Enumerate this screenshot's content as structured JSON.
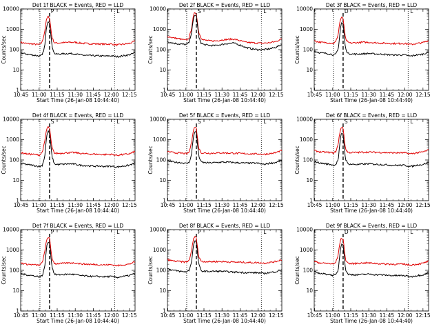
{
  "figure": {
    "panel_titles": [
      "Det 1f BLACK = Events, RED = LLD",
      "Det 2f BLACK = Events, RED = LLD",
      "Det 3f BLACK = Events, RED = LLD",
      "Det 4f BLACK = Events, RED = LLD",
      "Det 5f BLACK = Events, RED = LLD",
      "Det 6f BLACK = Events, RED = LLD",
      "Det 7f BLACK = Events, RED = LLD",
      "Det 8f BLACK = Events, RED = LLD",
      "Det 9f BLACK = Events, RED = LLD"
    ],
    "xlabel": "Start Time (26-Jan-08 10:44:40)",
    "ylabel": "Counts/sec",
    "x_ticks": [
      "10:45",
      "11:00",
      "11:15",
      "11:30",
      "11:45",
      "12:00",
      "12:15"
    ],
    "y_ticks": [
      "1",
      "10",
      "100",
      "1000",
      "10000"
    ],
    "annotation_labels": [
      "P",
      "S",
      "D",
      "S",
      "S",
      "S",
      "P",
      "P",
      "D"
    ],
    "annotation_end_label": "L",
    "colors": {
      "events": "#000000",
      "lld": "#e00000",
      "axes": "#000000",
      "background": "#ffffff"
    }
  },
  "chart_data": {
    "type": "line",
    "y_scale": "log",
    "ylim": [
      1,
      10000
    ],
    "x_range_minutes": [
      0,
      95
    ],
    "x_tick_minutes": [
      0.33,
      15.33,
      30.33,
      45.33,
      60.33,
      75.33,
      90.33
    ],
    "y_tick_values": [
      1,
      10,
      100,
      1000,
      10000
    ],
    "grid": false,
    "series_names": [
      "Events",
      "LLD"
    ],
    "panel_markers": [
      {
        "dotted": [
          16,
          78
        ],
        "dashed": [
          24
        ]
      },
      {
        "dotted": [
          16,
          78
        ],
        "dashed": [
          24
        ]
      },
      {
        "dotted": [
          16,
          78
        ],
        "dashed": [
          24
        ]
      },
      {
        "dotted": [
          16,
          78
        ],
        "dashed": [
          24
        ]
      },
      {
        "dotted": [
          16,
          78
        ],
        "dashed": [
          24
        ]
      },
      {
        "dotted": [
          16,
          78
        ],
        "dashed": [
          24
        ]
      },
      {
        "dotted": [
          16,
          78
        ],
        "dashed": [
          24
        ]
      },
      {
        "dotted": [
          16,
          78
        ],
        "dashed": [
          24
        ]
      },
      {
        "dotted": [
          16,
          78
        ],
        "dashed": [
          24
        ]
      }
    ],
    "x": [
      0,
      5,
      10,
      14,
      16,
      18,
      20,
      21,
      22,
      23,
      24,
      25,
      26,
      28,
      30,
      35,
      40,
      45,
      50,
      55,
      60,
      65,
      70,
      75,
      80,
      85,
      90,
      95
    ],
    "panels": [
      {
        "events": [
          70,
          60,
          55,
          50,
          48,
          55,
          150,
          700,
          2000,
          2600,
          2000,
          600,
          150,
          65,
          60,
          62,
          65,
          62,
          55,
          52,
          50,
          50,
          48,
          50,
          45,
          50,
          55,
          70
        ],
        "lld": [
          230,
          200,
          190,
          180,
          180,
          250,
          800,
          2200,
          3800,
          4200,
          3600,
          1200,
          400,
          220,
          210,
          220,
          230,
          230,
          210,
          200,
          195,
          190,
          185,
          190,
          170,
          185,
          200,
          260
        ]
      },
      {
        "events": [
          250,
          210,
          190,
          180,
          180,
          230,
          700,
          1800,
          4200,
          5200,
          4500,
          1500,
          400,
          210,
          180,
          160,
          160,
          180,
          200,
          210,
          170,
          130,
          110,
          100,
          100,
          110,
          130,
          180
        ],
        "lld": [
          450,
          380,
          340,
          300,
          300,
          380,
          1100,
          2800,
          5600,
          6800,
          5900,
          2000,
          700,
          380,
          300,
          270,
          270,
          300,
          320,
          330,
          280,
          230,
          220,
          210,
          210,
          220,
          250,
          340
        ]
      },
      {
        "events": [
          85,
          70,
          65,
          60,
          55,
          60,
          110,
          400,
          1500,
          2200,
          1800,
          450,
          110,
          65,
          62,
          60,
          62,
          65,
          62,
          60,
          58,
          55,
          55,
          55,
          48,
          55,
          60,
          75
        ],
        "lld": [
          270,
          230,
          220,
          210,
          200,
          250,
          600,
          1800,
          3400,
          3800,
          3200,
          1100,
          330,
          230,
          210,
          220,
          230,
          230,
          220,
          210,
          205,
          200,
          200,
          200,
          180,
          200,
          220,
          280
        ]
      },
      {
        "events": [
          70,
          60,
          55,
          50,
          48,
          55,
          150,
          700,
          2000,
          2600,
          2000,
          600,
          150,
          65,
          60,
          62,
          65,
          62,
          55,
          52,
          50,
          50,
          48,
          50,
          45,
          50,
          55,
          70
        ],
        "lld": [
          230,
          200,
          190,
          180,
          180,
          250,
          800,
          2200,
          3800,
          4200,
          3600,
          1200,
          400,
          220,
          210,
          220,
          230,
          230,
          210,
          200,
          195,
          190,
          185,
          190,
          170,
          185,
          200,
          260
        ]
      },
      {
        "events": [
          90,
          80,
          75,
          70,
          68,
          75,
          180,
          700,
          1900,
          2600,
          2100,
          600,
          160,
          80,
          75,
          72,
          75,
          78,
          78,
          75,
          72,
          70,
          70,
          70,
          60,
          70,
          75,
          100
        ],
        "lld": [
          260,
          230,
          220,
          210,
          200,
          240,
          700,
          2000,
          3600,
          4200,
          3600,
          1200,
          380,
          230,
          220,
          215,
          220,
          225,
          220,
          215,
          210,
          205,
          200,
          200,
          190,
          205,
          230,
          300
        ]
      },
      {
        "events": [
          85,
          70,
          65,
          60,
          55,
          60,
          110,
          400,
          1500,
          2200,
          1800,
          450,
          110,
          65,
          62,
          60,
          62,
          65,
          62,
          60,
          58,
          55,
          55,
          55,
          48,
          55,
          60,
          75
        ],
        "lld": [
          290,
          250,
          240,
          230,
          220,
          260,
          620,
          1800,
          3600,
          4200,
          3500,
          1100,
          340,
          240,
          230,
          235,
          240,
          245,
          240,
          235,
          230,
          225,
          225,
          225,
          200,
          225,
          245,
          310
        ]
      },
      {
        "events": [
          70,
          60,
          55,
          50,
          48,
          55,
          150,
          700,
          2000,
          2600,
          2000,
          600,
          150,
          65,
          60,
          62,
          65,
          62,
          55,
          52,
          50,
          50,
          48,
          50,
          45,
          50,
          55,
          70
        ],
        "lld": [
          230,
          200,
          190,
          180,
          180,
          250,
          800,
          2200,
          3800,
          4200,
          3600,
          1200,
          400,
          220,
          210,
          220,
          230,
          230,
          210,
          200,
          195,
          190,
          185,
          190,
          170,
          185,
          200,
          260
        ]
      },
      {
        "events": [
          120,
          100,
          90,
          85,
          85,
          100,
          250,
          900,
          2200,
          2800,
          2300,
          700,
          200,
          95,
          90,
          88,
          90,
          90,
          85,
          82,
          80,
          78,
          76,
          76,
          70,
          78,
          85,
          110
        ],
        "lld": [
          330,
          290,
          270,
          260,
          260,
          310,
          850,
          2300,
          4000,
          4600,
          4000,
          1400,
          450,
          290,
          270,
          265,
          270,
          270,
          260,
          255,
          250,
          245,
          240,
          240,
          225,
          245,
          270,
          340
        ]
      },
      {
        "events": [
          85,
          70,
          65,
          60,
          55,
          60,
          110,
          400,
          1500,
          2200,
          1800,
          450,
          110,
          65,
          62,
          60,
          62,
          65,
          62,
          60,
          58,
          55,
          55,
          55,
          48,
          55,
          60,
          75
        ],
        "lld": [
          270,
          230,
          220,
          210,
          200,
          250,
          600,
          1800,
          3400,
          3800,
          3200,
          1100,
          330,
          230,
          210,
          220,
          230,
          230,
          220,
          210,
          205,
          200,
          200,
          200,
          180,
          200,
          220,
          280
        ]
      }
    ]
  }
}
